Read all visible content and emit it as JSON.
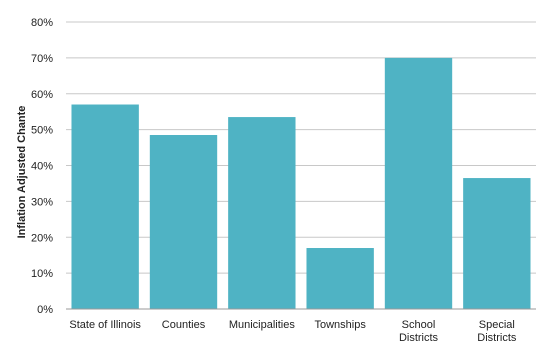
{
  "chart_data": {
    "type": "bar",
    "title": "",
    "xlabel": "",
    "ylabel": "Inflation Adjusted Chante",
    "categories": [
      [
        "State of Illinois"
      ],
      [
        "Counties"
      ],
      [
        "Municipalities"
      ],
      [
        "Townships"
      ],
      [
        "School",
        "Districts"
      ],
      [
        "Special",
        "Districts"
      ]
    ],
    "values": [
      57,
      48.5,
      53.5,
      17,
      70,
      36.5
    ],
    "y_ticks": [
      "0%",
      "10%",
      "20%",
      "30%",
      "40%",
      "50%",
      "60%",
      "70%",
      "80%"
    ],
    "ylim": [
      0,
      80
    ],
    "y_unit": "%",
    "grid": true,
    "bar_color": "#4fb3c4",
    "grid_color": "#c8c8c8"
  }
}
